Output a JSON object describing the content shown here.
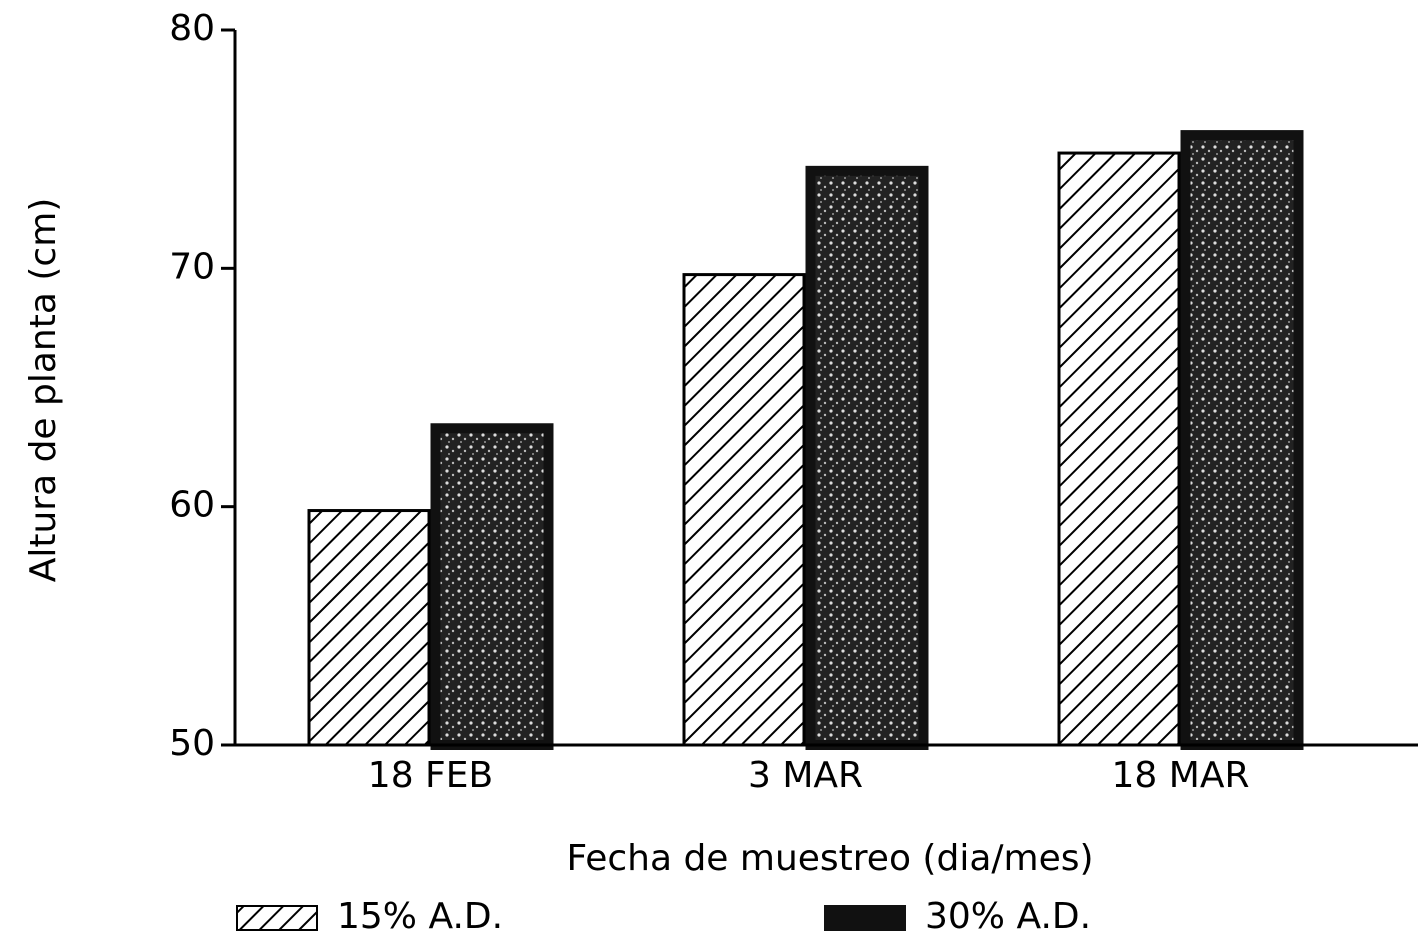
{
  "chart_data": {
    "type": "bar",
    "categories": [
      "18 FEB",
      "3 MAR",
      "18 MAR"
    ],
    "series": [
      {
        "name": "15% A.D.",
        "color": "#000000",
        "values": [
          59.9,
          69.8,
          74.9
        ]
      },
      {
        "name": "30% A.D.",
        "color": "#111111",
        "values": [
          63.5,
          74.3,
          75.8
        ]
      }
    ],
    "ylim": [
      50,
      80
    ],
    "yticks": [
      50,
      60,
      70,
      80
    ],
    "ylabel": "Altura de planta (cm)",
    "xlabel": "Fecha de muestreo (dia/mes)"
  }
}
